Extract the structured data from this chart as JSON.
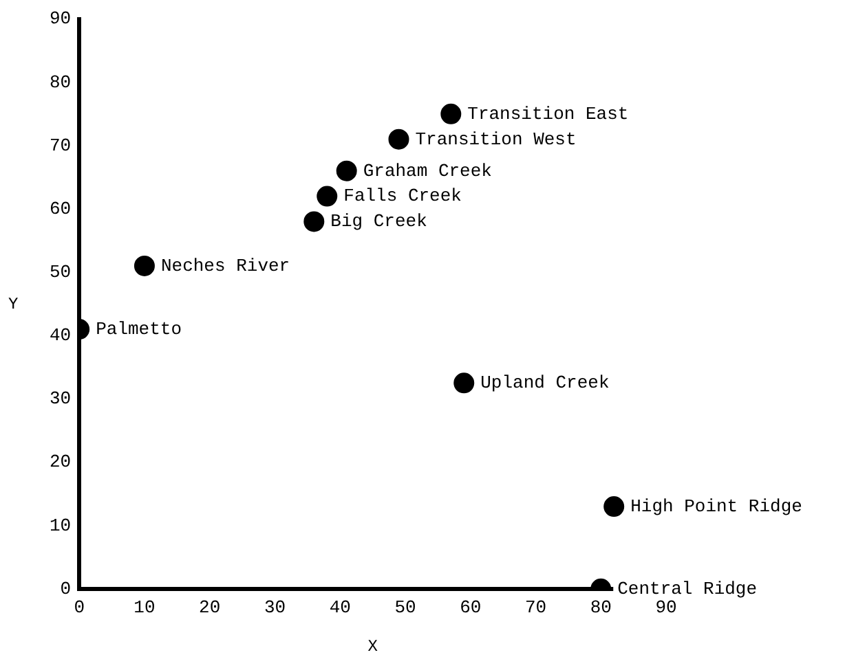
{
  "chart_data": {
    "type": "scatter",
    "xlabel": "X",
    "ylabel": "Y",
    "x": [
      57,
      49,
      41,
      38,
      36,
      10,
      0,
      59,
      82,
      80
    ],
    "values": [
      75,
      71,
      66,
      62,
      58,
      51,
      41,
      32.5,
      13,
      0
    ],
    "color": "#000000",
    "marker": "circle",
    "xlim": [
      0,
      90
    ],
    "ylim": [
      0,
      90
    ],
    "xticks": [
      0,
      10,
      20,
      30,
      40,
      50,
      60,
      70,
      80,
      90
    ],
    "yticks": [
      0,
      10,
      20,
      30,
      40,
      50,
      60,
      70,
      80,
      90
    ],
    "grid": false,
    "legend": false,
    "annotations": [
      {
        "text": "Transition East",
        "x": 57,
        "y": 75
      },
      {
        "text": "Transition West",
        "x": 49,
        "y": 71
      },
      {
        "text": "Graham Creek",
        "x": 41,
        "y": 66
      },
      {
        "text": "Falls Creek",
        "x": 38,
        "y": 62
      },
      {
        "text": "Big Creek",
        "x": 36,
        "y": 58
      },
      {
        "text": "Neches River",
        "x": 10,
        "y": 51
      },
      {
        "text": "Palmetto",
        "x": 0,
        "y": 41
      },
      {
        "text": "Upland Creek",
        "x": 59,
        "y": 32.5
      },
      {
        "text": "High Point Ridge",
        "x": 82,
        "y": 13
      },
      {
        "text": "Central Ridge",
        "x": 80,
        "y": 0
      }
    ]
  }
}
